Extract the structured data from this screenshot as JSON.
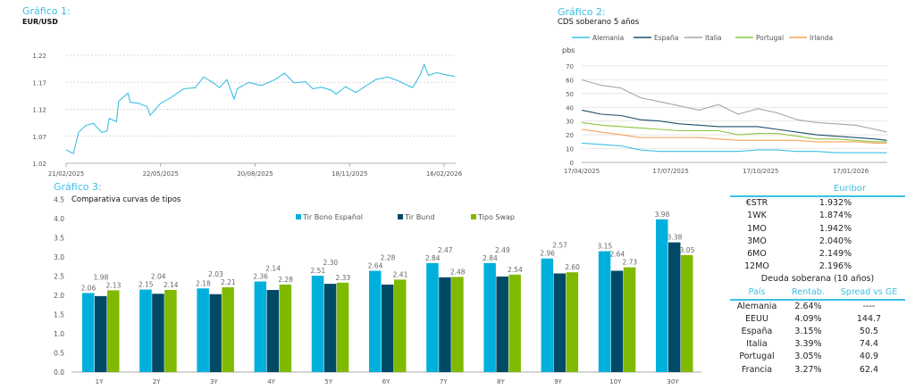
{
  "chart1": {
    "heading": "Gráfico 1:",
    "subtitle": "EUR/USD"
  },
  "chart2": {
    "heading": "Gráfico 2:",
    "subtitle": "CDS soberano 5 años",
    "unit": "pbs"
  },
  "chart3": {
    "heading": "Gráfico 3:",
    "subtitle": "Comparativa curvas de tipos"
  },
  "chart_data": [
    {
      "type": "line",
      "title": "EUR/USD",
      "ylim": [
        1.02,
        1.22
      ],
      "yticks": [
        "1.02",
        "1.07",
        "1.12",
        "1.17",
        "1.22"
      ],
      "xticks": [
        "21/02/2025",
        "22/05/2025",
        "20/08/2025",
        "18/11/2025",
        "16/02/2026"
      ],
      "xtick_dates": [
        "2025-02-21",
        "2025-05-22",
        "2025-08-20",
        "2025-11-18",
        "2026-02-16"
      ],
      "grid": "horizontal dashed",
      "color": "#3cbfe4",
      "series": [
        {
          "points": [
            [
              "2025-02-21",
              1.045
            ],
            [
              "2025-02-28",
              1.038
            ],
            [
              "2025-03-05",
              1.078
            ],
            [
              "2025-03-12",
              1.09
            ],
            [
              "2025-03-19",
              1.094
            ],
            [
              "2025-03-27",
              1.077
            ],
            [
              "2025-04-01",
              1.08
            ],
            [
              "2025-04-03",
              1.103
            ],
            [
              "2025-04-10",
              1.097
            ],
            [
              "2025-04-12",
              1.135
            ],
            [
              "2025-04-21",
              1.15
            ],
            [
              "2025-04-23",
              1.133
            ],
            [
              "2025-05-01",
              1.131
            ],
            [
              "2025-05-09",
              1.125
            ],
            [
              "2025-05-12",
              1.109
            ],
            [
              "2025-05-22",
              1.131
            ],
            [
              "2025-06-01",
              1.142
            ],
            [
              "2025-06-13",
              1.158
            ],
            [
              "2025-06-24",
              1.16
            ],
            [
              "2025-07-02",
              1.18
            ],
            [
              "2025-07-12",
              1.168
            ],
            [
              "2025-07-17",
              1.16
            ],
            [
              "2025-07-24",
              1.175
            ],
            [
              "2025-07-31",
              1.139
            ],
            [
              "2025-08-03",
              1.158
            ],
            [
              "2025-08-14",
              1.17
            ],
            [
              "2025-08-26",
              1.164
            ],
            [
              "2025-09-08",
              1.175
            ],
            [
              "2025-09-17",
              1.187
            ],
            [
              "2025-09-26",
              1.169
            ],
            [
              "2025-10-07",
              1.171
            ],
            [
              "2025-10-14",
              1.158
            ],
            [
              "2025-10-22",
              1.161
            ],
            [
              "2025-11-01",
              1.155
            ],
            [
              "2025-11-05",
              1.148
            ],
            [
              "2025-11-14",
              1.162
            ],
            [
              "2025-11-24",
              1.151
            ],
            [
              "2025-12-04",
              1.164
            ],
            [
              "2025-12-13",
              1.175
            ],
            [
              "2025-12-24",
              1.18
            ],
            [
              "2026-01-04",
              1.172
            ],
            [
              "2026-01-17",
              1.16
            ],
            [
              "2026-01-24",
              1.183
            ],
            [
              "2026-01-28",
              1.203
            ],
            [
              "2026-02-01",
              1.183
            ],
            [
              "2026-02-09",
              1.188
            ],
            [
              "2026-02-15",
              1.185
            ],
            [
              "2026-02-26",
              1.181
            ]
          ]
        }
      ]
    },
    {
      "type": "line",
      "title": "CDS soberano 5 años",
      "ylabel": "pbs",
      "ylim": [
        0,
        70
      ],
      "yticks": [
        "0",
        "10",
        "20",
        "30",
        "40",
        "50",
        "60",
        "70"
      ],
      "xticks": [
        "17/04/2025",
        "17/07/2025",
        "17/10/2025",
        "17/01/2026"
      ],
      "xtick_dates": [
        "2025-04-17",
        "2025-07-17",
        "2025-10-17",
        "2026-01-17"
      ],
      "legend": "top",
      "grid": "horizontal",
      "x": [
        "2025-04-17",
        "2025-05-07",
        "2025-05-27",
        "2025-06-16",
        "2025-07-06",
        "2025-07-26",
        "2025-08-15",
        "2025-09-04",
        "2025-09-24",
        "2025-10-14",
        "2025-11-03",
        "2025-11-23",
        "2025-12-13",
        "2026-01-02",
        "2026-01-22",
        "2026-02-11",
        "2026-02-23"
      ],
      "series": [
        {
          "name": "Alemania",
          "color": "#3cbfe4",
          "values": [
            14,
            13,
            12,
            9,
            8,
            8,
            8,
            8,
            8,
            9,
            9,
            8,
            8,
            7,
            7,
            7,
            7
          ]
        },
        {
          "name": "España",
          "color": "#1f4e6b",
          "values": [
            38,
            35,
            34,
            31,
            30,
            28,
            27,
            26,
            26,
            26,
            24,
            22,
            20,
            19,
            18,
            17,
            16
          ]
        },
        {
          "name": "Italia",
          "color": "#a6a6a6",
          "values": [
            60,
            56,
            54,
            47,
            44,
            41,
            38,
            42,
            35,
            39,
            36,
            31,
            29,
            28,
            27,
            24,
            22
          ]
        },
        {
          "name": "Portugal",
          "color": "#8cc63f",
          "values": [
            29,
            27,
            26,
            25,
            24,
            23,
            23,
            23,
            20,
            21,
            21,
            19,
            17,
            17,
            16,
            15,
            15
          ]
        },
        {
          "name": "Irlanda",
          "color": "#f7a35c",
          "values": [
            24,
            22,
            20,
            18,
            18,
            18,
            18,
            17,
            16,
            16,
            16,
            16,
            15,
            15,
            15,
            14,
            14
          ]
        }
      ]
    },
    {
      "type": "bar",
      "title": "Comparativa curvas de tipos",
      "ylim": [
        0,
        4.5
      ],
      "yticks": [
        "0.0",
        "0.5",
        "1.0",
        "1.5",
        "2.0",
        "2.5",
        "3.0",
        "3.5",
        "4.0",
        "4.5"
      ],
      "legend": "top",
      "grid": "none",
      "categories": [
        "1Y",
        "2Y",
        "3Y",
        "4Y",
        "5Y",
        "6Y",
        "7Y",
        "8Y",
        "9Y",
        "10Y",
        "30Y"
      ],
      "series": [
        {
          "name": "Tir Bono Español",
          "color": "#00b0dc",
          "values": [
            2.06,
            2.15,
            2.18,
            2.36,
            2.51,
            2.64,
            2.84,
            2.84,
            2.96,
            3.15,
            3.98
          ]
        },
        {
          "name": "Tir Bund",
          "color": "#004a66",
          "values": [
            1.98,
            2.04,
            2.03,
            2.14,
            2.3,
            2.28,
            2.47,
            2.49,
            2.57,
            2.64,
            3.38
          ]
        },
        {
          "name": "Tipo Swap",
          "color": "#7fba00",
          "values": [
            2.13,
            2.14,
            2.21,
            2.28,
            2.33,
            2.41,
            2.48,
            2.54,
            2.6,
            2.73,
            3.05
          ]
        }
      ]
    }
  ],
  "table": {
    "euribor_header": "Euribor",
    "euribor": [
      [
        "€STR",
        "1.932%"
      ],
      [
        "1WK",
        "1.874%"
      ],
      [
        "1MO",
        "1.942%"
      ],
      [
        "3MO",
        "2.040%"
      ],
      [
        "6MO",
        "2.149%"
      ],
      [
        "12MO",
        "2.196%"
      ]
    ],
    "sovereign_title": "Deuda soberana (10 años)",
    "columns": [
      "País",
      "Rentab.",
      "Spread vs GE"
    ],
    "rows": [
      [
        "Alemania",
        "2.64%",
        "----"
      ],
      [
        "EEUU",
        "4.09%",
        "144.7"
      ],
      [
        "España",
        "3.15%",
        "50.5"
      ],
      [
        "Italia",
        "3.39%",
        "74.4"
      ],
      [
        "Portugal",
        "3.05%",
        "40.9"
      ],
      [
        "Francia",
        "3.27%",
        "62.4"
      ]
    ],
    "accent": "#3cbfe4"
  }
}
